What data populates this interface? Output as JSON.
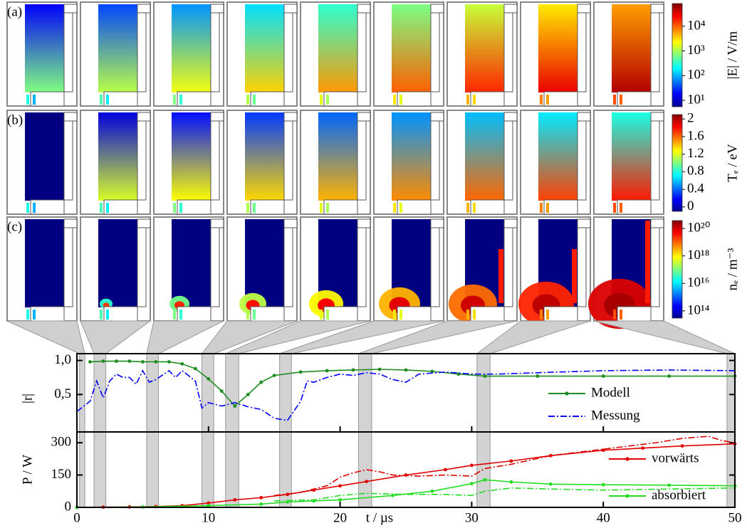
{
  "panels": {
    "row_labels": [
      "(a)",
      "(b)",
      "(c)"
    ],
    "colorbars": [
      {
        "label": "|E| / V/m",
        "scale": "log",
        "lim": [
          5.5,
          83000
        ],
        "ticks": [
          {
            "value": 10,
            "label": "10¹"
          },
          {
            "value": 100,
            "label": "10²"
          },
          {
            "value": 1000,
            "label": "10³"
          },
          {
            "value": 10000,
            "label": "10⁴"
          }
        ]
      },
      {
        "label": "Tₑ / eV",
        "scale": "linear",
        "lim": [
          -0.1,
          2.1
        ],
        "ticks": [
          0,
          0.4,
          0.8,
          1.2,
          1.6,
          2
        ]
      },
      {
        "label": "nₑ / m⁻³",
        "scale": "log",
        "lim": [
          30000000000000.0,
          3.7e+20
        ],
        "ticks": [
          {
            "value": 100000000000000.0,
            "label": "10¹⁴"
          },
          {
            "value": 1e+16,
            "label": "10¹⁶"
          },
          {
            "value": 1e+18,
            "label": "10¹⁸"
          },
          {
            "value": 1e+20,
            "label": "10²⁰"
          }
        ]
      }
    ]
  },
  "chart_data": [
    {
      "type": "line",
      "ylabel": "|r|",
      "xlim": [
        0,
        50
      ],
      "ylim": [
        -0.05,
        1.1
      ],
      "xticks": [
        0,
        10,
        20,
        30,
        40,
        50
      ],
      "yticks": [
        {
          "value": 0.5,
          "label": "0,5"
        },
        {
          "value": 1,
          "label": "1,0"
        }
      ],
      "bands": [
        [
          0.2,
          0.6
        ],
        [
          1.3,
          2.2
        ],
        [
          5.3,
          6.2
        ],
        [
          9.5,
          10.4
        ],
        [
          11.3,
          12.3
        ],
        [
          15.4,
          16.3
        ],
        [
          21.4,
          22.4
        ],
        [
          30.4,
          31.4
        ],
        [
          49.4,
          50
        ]
      ],
      "legend": "right",
      "series": [
        {
          "name": "Modell",
          "color": "#1e8c1e",
          "style": "solid",
          "markers": true,
          "x": [
            1,
            2,
            3,
            4,
            5,
            6,
            7,
            8,
            9,
            10,
            11,
            12,
            13,
            14,
            15,
            17,
            19,
            21,
            23,
            25,
            27,
            29,
            31,
            35,
            40,
            45,
            50
          ],
          "values": [
            0.98,
            0.99,
            0.99,
            0.99,
            0.98,
            0.98,
            0.98,
            0.95,
            0.88,
            0.73,
            0.55,
            0.33,
            0.5,
            0.68,
            0.78,
            0.83,
            0.85,
            0.86,
            0.87,
            0.86,
            0.84,
            0.8,
            0.77,
            0.77,
            0.77,
            0.77,
            0.77
          ]
        },
        {
          "name": "Messung",
          "color": "#0000ff",
          "style": "dashdot",
          "markers": false,
          "x": [
            0,
            1,
            1.5,
            2,
            2.5,
            3,
            3.5,
            4,
            4.5,
            5,
            5.5,
            6,
            7,
            7.5,
            8,
            9,
            9.5,
            10,
            11,
            12,
            13,
            14,
            15,
            16,
            17,
            17.5,
            18,
            19,
            20,
            21,
            22,
            23,
            24,
            25,
            26,
            28,
            30,
            32,
            35,
            40,
            45,
            50
          ],
          "values": [
            0.25,
            0.4,
            0.7,
            0.45,
            0.7,
            0.8,
            0.75,
            0.75,
            0.65,
            0.85,
            0.68,
            0.72,
            0.85,
            0.75,
            0.85,
            0.7,
            0.3,
            0.38,
            0.33,
            0.38,
            0.32,
            0.28,
            0.15,
            0.12,
            0.4,
            0.7,
            0.68,
            0.75,
            0.8,
            0.78,
            0.82,
            0.8,
            0.72,
            0.68,
            0.8,
            0.83,
            0.8,
            0.8,
            0.82,
            0.85,
            0.86,
            0.85
          ]
        }
      ]
    },
    {
      "type": "line",
      "ylabel": "P / W",
      "xlabel": "t / µs",
      "xlim": [
        0,
        50
      ],
      "ylim": [
        0,
        350
      ],
      "xticks": [
        0,
        10,
        20,
        30,
        40,
        50
      ],
      "yticks": [
        0,
        150,
        300
      ],
      "legend": "right",
      "series": [
        {
          "name": "vorwärts",
          "color": "#e00000",
          "style": "solid",
          "markers": true,
          "x": [
            0,
            2,
            4,
            6,
            8,
            10,
            12,
            14,
            16,
            18,
            20,
            22,
            25,
            28,
            30,
            33,
            36,
            40,
            43,
            46,
            50
          ],
          "values": [
            0,
            1,
            2,
            4,
            8,
            20,
            35,
            45,
            60,
            80,
            100,
            120,
            150,
            175,
            195,
            215,
            240,
            265,
            275,
            285,
            295
          ]
        },
        {
          "color": "#e00000",
          "style": "dashdot",
          "markers": false,
          "x": [
            15,
            17,
            19,
            20,
            21,
            22,
            23,
            24,
            26,
            28,
            30,
            31,
            33,
            36,
            40,
            44,
            46,
            48,
            49,
            50
          ],
          "values": [
            55,
            70,
            100,
            140,
            160,
            175,
            165,
            150,
            145,
            150,
            145,
            180,
            200,
            240,
            270,
            300,
            320,
            330,
            310,
            300
          ]
        },
        {
          "name": "absorbiert",
          "color": "#22dd22",
          "style": "solid",
          "markers": true,
          "x": [
            0,
            5,
            10,
            14,
            16,
            18,
            20,
            24,
            27,
            30,
            31,
            33,
            36,
            40,
            45,
            50
          ],
          "values": [
            0,
            2,
            8,
            15,
            25,
            30,
            35,
            55,
            75,
            110,
            128,
            118,
            108,
            105,
            103,
            100
          ]
        },
        {
          "color": "#22dd22",
          "style": "dashdot",
          "markers": false,
          "x": [
            15,
            18,
            20,
            22,
            25,
            28,
            30,
            31,
            33,
            36,
            40,
            45,
            50
          ],
          "values": [
            30,
            35,
            55,
            65,
            60,
            60,
            55,
            75,
            90,
            85,
            80,
            85,
            90
          ]
        }
      ]
    }
  ]
}
